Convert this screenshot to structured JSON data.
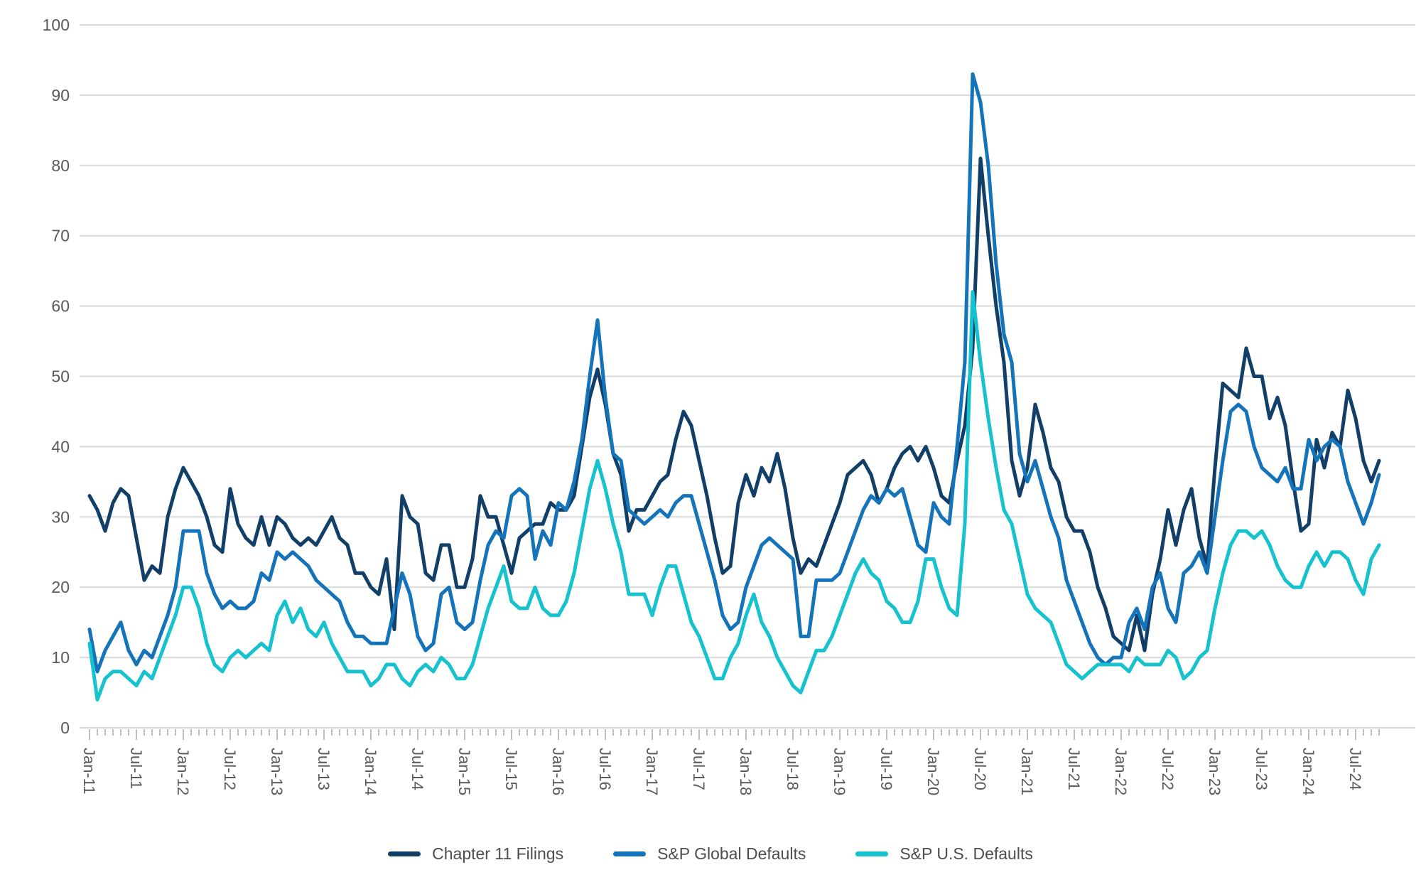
{
  "chart_data": {
    "type": "line",
    "title": "",
    "xlabel": "",
    "ylabel": "",
    "x_frequency": "monthly",
    "x_start": "Jan-11",
    "x_end": "Oct-24",
    "x_tick_interval": 6,
    "x_tick_labels": [
      "Jan-11",
      "Jul-11",
      "Jan-12",
      "Jul-12",
      "Jan-13",
      "Jul-13",
      "Jan-14",
      "Jul-14",
      "Jan-15",
      "Jul-15",
      "Jan-16",
      "Jul-16",
      "Jan-17",
      "Jul-17",
      "Jan-18",
      "Jul-18",
      "Jan-19",
      "Jul-19",
      "Jan-20",
      "Jul-20",
      "Jan-21",
      "Jul-21",
      "Jan-22",
      "Jul-22",
      "Jan-23",
      "Jul-23",
      "Jan-24",
      "Jul-24"
    ],
    "ylim": [
      0,
      100
    ],
    "y_ticks": [
      0,
      10,
      20,
      30,
      40,
      50,
      60,
      70,
      80,
      90,
      100
    ],
    "grid": "horizontal",
    "legend_position": "bottom-center",
    "colors": {
      "grid": "#d9d9d9",
      "tick": "#c0c0c0",
      "axis_text": "#595959",
      "legend_text": "#4d4d4d"
    },
    "series": [
      {
        "name": "Chapter 11 Filings",
        "color": "#123f68",
        "values": [
          33,
          31,
          28,
          32,
          34,
          33,
          27,
          21,
          23,
          22,
          30,
          34,
          37,
          35,
          33,
          30,
          26,
          25,
          34,
          29,
          27,
          26,
          30,
          26,
          30,
          29,
          27,
          26,
          27,
          26,
          28,
          30,
          27,
          26,
          22,
          22,
          20,
          19,
          24,
          14,
          33,
          30,
          29,
          22,
          21,
          26,
          26,
          20,
          20,
          24,
          33,
          30,
          30,
          26,
          22,
          27,
          28,
          29,
          29,
          32,
          31,
          31,
          33,
          40,
          47,
          51,
          46,
          39,
          36,
          28,
          31,
          31,
          33,
          35,
          36,
          41,
          45,
          43,
          38,
          33,
          27,
          22,
          23,
          32,
          36,
          33,
          37,
          35,
          39,
          34,
          27,
          22,
          24,
          23,
          26,
          29,
          32,
          36,
          37,
          38,
          36,
          32,
          34,
          37,
          39,
          40,
          38,
          40,
          37,
          33,
          32,
          38,
          43,
          54,
          81,
          70,
          60,
          52,
          38,
          33,
          37,
          46,
          42,
          37,
          35,
          30,
          28,
          28,
          25,
          20,
          17,
          13,
          12,
          11,
          16,
          11,
          19,
          24,
          31,
          26,
          31,
          34,
          27,
          23,
          37,
          49,
          48,
          47,
          54,
          50,
          50,
          44,
          47,
          43,
          35,
          28,
          29,
          41,
          37,
          42,
          40,
          48,
          44,
          38,
          35,
          38
        ]
      },
      {
        "name": "S&P Global Defaults",
        "color": "#1473b9",
        "values": [
          14,
          8,
          11,
          13,
          15,
          11,
          9,
          11,
          10,
          13,
          16,
          20,
          28,
          28,
          28,
          22,
          19,
          17,
          18,
          17,
          17,
          18,
          22,
          21,
          25,
          24,
          25,
          24,
          23,
          21,
          20,
          19,
          18,
          15,
          13,
          13,
          12,
          12,
          12,
          17,
          22,
          19,
          13,
          11,
          12,
          19,
          20,
          15,
          14,
          15,
          21,
          26,
          28,
          27,
          33,
          34,
          33,
          24,
          28,
          26,
          32,
          31,
          35,
          41,
          50,
          58,
          47,
          39,
          38,
          31,
          30,
          29,
          30,
          31,
          30,
          32,
          33,
          33,
          29,
          25,
          21,
          16,
          14,
          15,
          20,
          23,
          26,
          27,
          26,
          25,
          24,
          13,
          13,
          21,
          21,
          21,
          22,
          25,
          28,
          31,
          33,
          32,
          34,
          33,
          34,
          30,
          26,
          25,
          32,
          30,
          29,
          40,
          52,
          93,
          89,
          80,
          66,
          56,
          52,
          39,
          35,
          38,
          34,
          30,
          27,
          21,
          18,
          15,
          12,
          10,
          9,
          10,
          10,
          15,
          17,
          14,
          20,
          22,
          17,
          15,
          22,
          23,
          25,
          22,
          30,
          38,
          45,
          46,
          45,
          40,
          37,
          36,
          35,
          37,
          34,
          34,
          41,
          38,
          40,
          41,
          40,
          35,
          32,
          29,
          32,
          36
        ]
      },
      {
        "name": "S&P U.S. Defaults",
        "color": "#16c2ce",
        "values": [
          12,
          4,
          7,
          8,
          8,
          7,
          6,
          8,
          7,
          10,
          13,
          16,
          20,
          20,
          17,
          12,
          9,
          8,
          10,
          11,
          10,
          11,
          12,
          11,
          16,
          18,
          15,
          17,
          14,
          13,
          15,
          12,
          10,
          8,
          8,
          8,
          6,
          7,
          9,
          9,
          7,
          6,
          8,
          9,
          8,
          10,
          9,
          7,
          7,
          9,
          13,
          17,
          20,
          23,
          18,
          17,
          17,
          20,
          17,
          16,
          16,
          18,
          22,
          28,
          34,
          38,
          34,
          29,
          25,
          19,
          19,
          19,
          16,
          20,
          23,
          23,
          19,
          15,
          13,
          10,
          7,
          7,
          10,
          12,
          16,
          19,
          15,
          13,
          10,
          8,
          6,
          5,
          8,
          11,
          11,
          13,
          16,
          19,
          22,
          24,
          22,
          21,
          18,
          17,
          15,
          15,
          18,
          24,
          24,
          20,
          17,
          16,
          29,
          62,
          52,
          44,
          37,
          31,
          29,
          24,
          19,
          17,
          16,
          15,
          12,
          9,
          8,
          7,
          8,
          9,
          9,
          9,
          9,
          8,
          10,
          9,
          9,
          9,
          11,
          10,
          7,
          8,
          10,
          11,
          17,
          22,
          26,
          28,
          28,
          27,
          28,
          26,
          23,
          21,
          20,
          20,
          23,
          25,
          23,
          25,
          25,
          24,
          21,
          19,
          24,
          26
        ]
      }
    ],
    "legend": [
      "Chapter 11 Filings",
      "S&P Global Defaults",
      "S&P U.S. Defaults"
    ]
  }
}
